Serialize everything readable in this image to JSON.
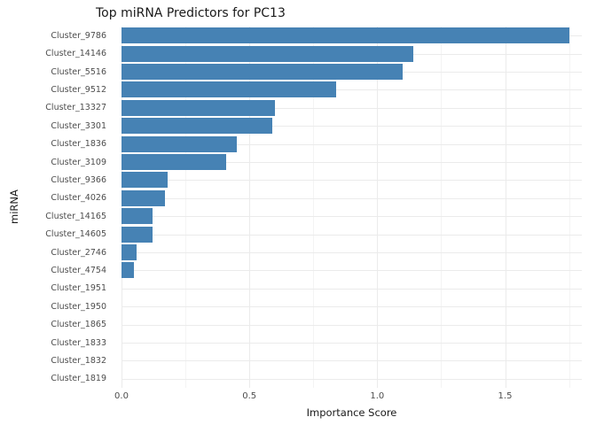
{
  "chart_data": {
    "type": "bar",
    "orientation": "horizontal",
    "title": "Top miRNA Predictors for PC13",
    "xlabel": "Importance Score",
    "ylabel": "miRNA",
    "categories": [
      "Cluster_9786",
      "Cluster_14146",
      "Cluster_5516",
      "Cluster_9512",
      "Cluster_13327",
      "Cluster_3301",
      "Cluster_1836",
      "Cluster_3109",
      "Cluster_9366",
      "Cluster_4026",
      "Cluster_14165",
      "Cluster_14605",
      "Cluster_2746",
      "Cluster_4754",
      "Cluster_1951",
      "Cluster_1950",
      "Cluster_1865",
      "Cluster_1833",
      "Cluster_1832",
      "Cluster_1819"
    ],
    "values": [
      1.75,
      1.14,
      1.1,
      0.84,
      0.6,
      0.59,
      0.45,
      0.41,
      0.18,
      0.17,
      0.12,
      0.12,
      0.06,
      0.05,
      0,
      0,
      0,
      0,
      0,
      0
    ],
    "xlim": [
      0,
      1.8
    ],
    "x_ticks": [
      0.0,
      0.5,
      1.0,
      1.5
    ],
    "x_tick_labels": [
      "0.0",
      "0.5",
      "1.0",
      "1.5"
    ],
    "x_minor_ticks": [
      0.25,
      0.75,
      1.25,
      1.75
    ],
    "bar_color": "#4682B4",
    "grid": "on",
    "legend": "none",
    "background_color": "#ffffff",
    "grid_color": "#ebebeb",
    "text_color": "#4d4d4d"
  }
}
